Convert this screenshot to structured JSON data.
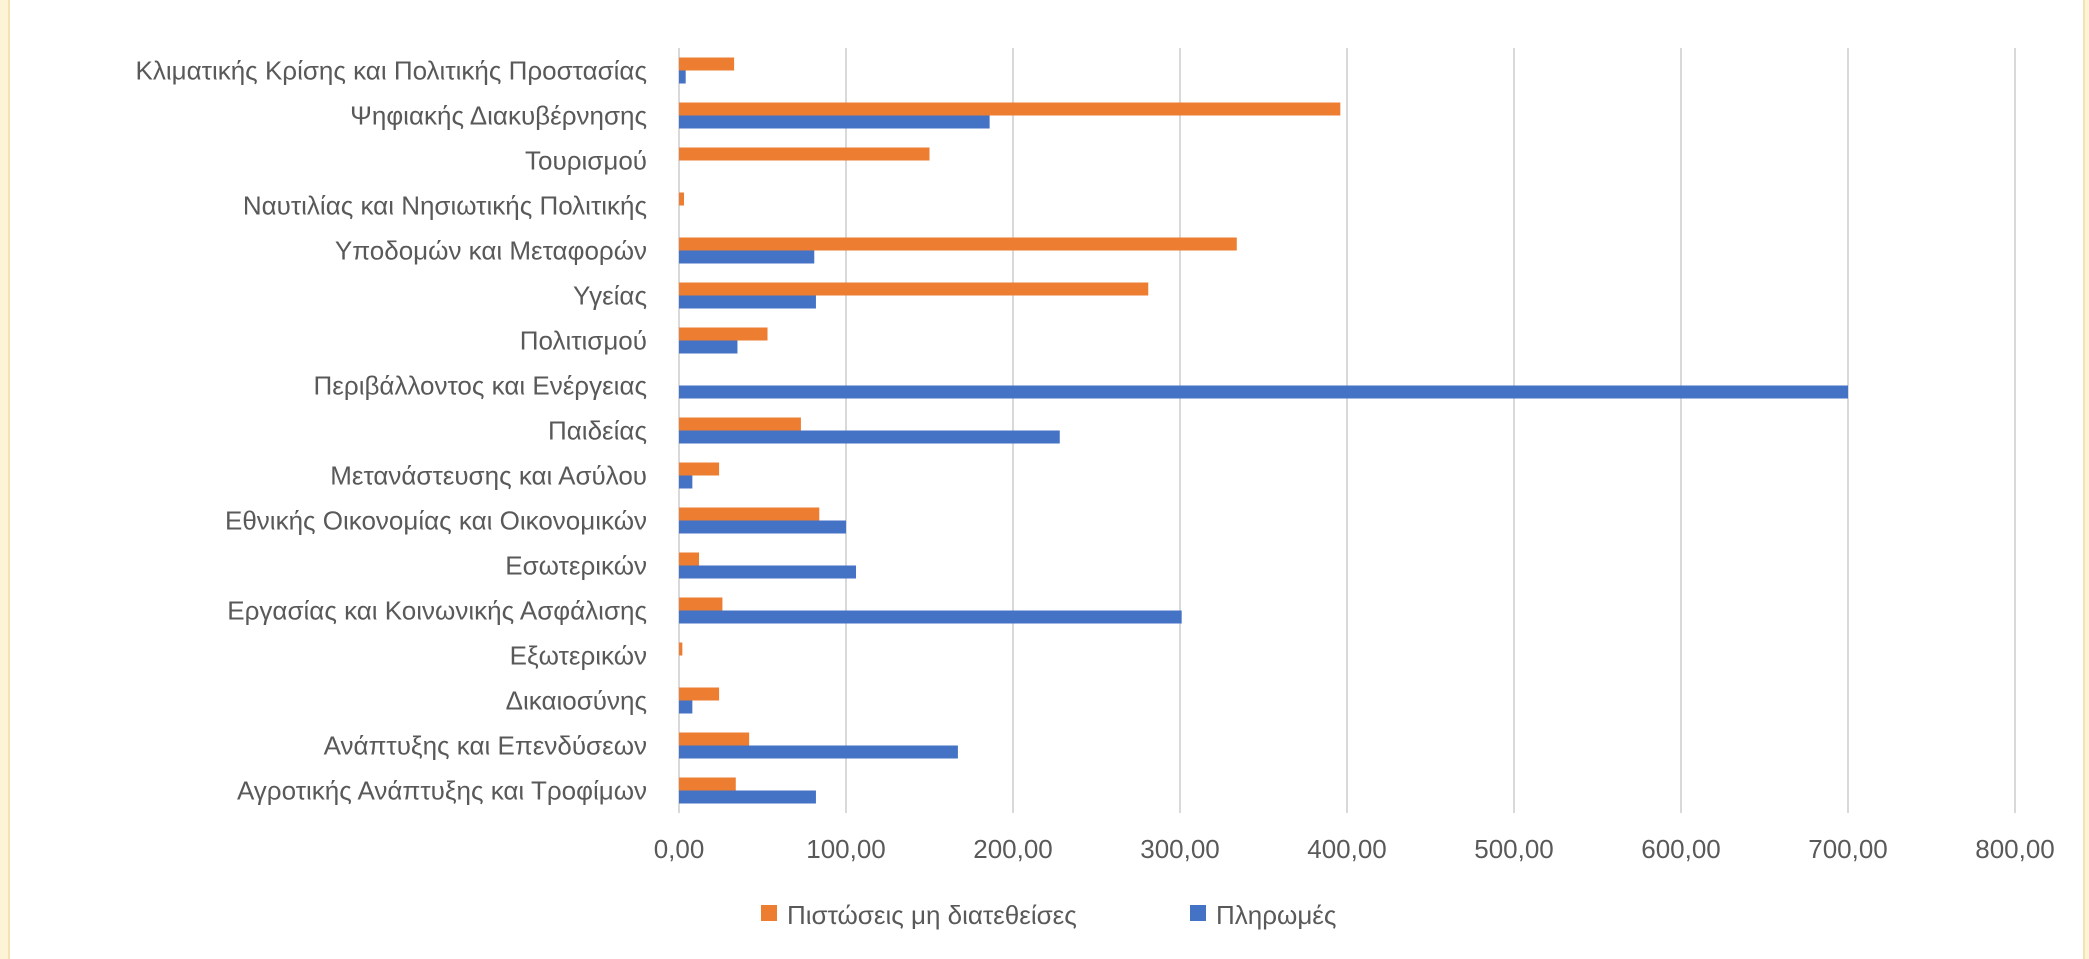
{
  "chart_data": {
    "type": "bar",
    "orientation": "horizontal",
    "categories": [
      "Κλιματικής Κρίσης και Πολιτικής Προστασίας",
      "Ψηφιακής Διακυβέρνησης",
      "Τουρισμού",
      "Ναυτιλίας και Νησιωτικής Πολιτικής",
      "Υποδομών και Μεταφορών",
      "Υγείας",
      "Πολιτισμού",
      "Περιβάλλοντος και Ενέργειας",
      "Παιδείας",
      "Μετανάστευσης και Ασύλου",
      "Εθνικής Οικονομίας και Οικονομικών",
      "Εσωτερικών",
      "Εργασίας και Κοινωνικής Ασφάλισης",
      "Εξωτερικών",
      "Δικαιοσύνης",
      "Ανάπτυξης και Επενδύσεων",
      "Αγροτικής Ανάπτυξης και Τροφίμων"
    ],
    "series": [
      {
        "name": "Πιστώσεις μη διατεθείσες",
        "color": "#ED7D31",
        "values": [
          33,
          396,
          150,
          3,
          334,
          281,
          53,
          0,
          73,
          24,
          84,
          12,
          26,
          2,
          24,
          42,
          34
        ]
      },
      {
        "name": "Πληρωμές",
        "color": "#4472C4",
        "values": [
          4,
          186,
          0,
          0,
          81,
          82,
          35,
          700,
          228,
          8,
          100,
          106,
          301,
          0,
          8,
          167,
          82
        ]
      }
    ],
    "xlim": [
      0,
      800
    ],
    "xticks": [
      "0,00",
      "100,00",
      "200,00",
      "300,00",
      "400,00",
      "500,00",
      "600,00",
      "700,00",
      "800,00"
    ],
    "grid": true,
    "legend_position": "bottom"
  }
}
